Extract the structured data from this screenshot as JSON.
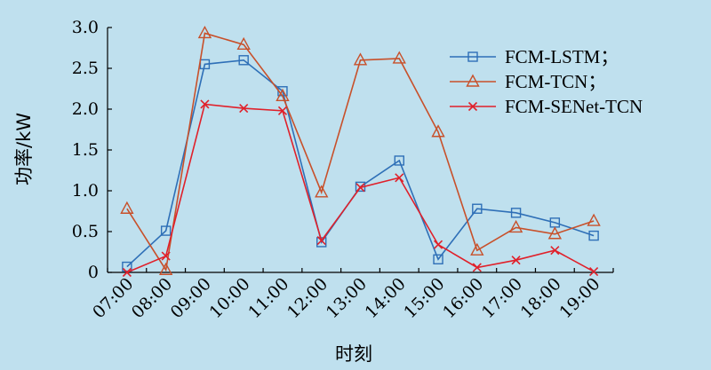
{
  "chart_data": {
    "type": "line",
    "xlabel": "时刻",
    "ylabel": "功率/kW",
    "ylim": [
      0,
      3.0
    ],
    "yticks": [
      "0",
      "0.5",
      "1.0",
      "1.5",
      "2.0",
      "2.5",
      "3.0"
    ],
    "categories": [
      "07:00",
      "08:00",
      "09:00",
      "10:00",
      "11:00",
      "12:00",
      "13:00",
      "14:00",
      "15:00",
      "16:00",
      "17:00",
      "18:00",
      "19:00"
    ],
    "grid": false,
    "legend_position": "top-right",
    "series": [
      {
        "name": "FCM-LSTM；",
        "marker": "square",
        "color": "#2e6fb7",
        "values": [
          0.07,
          0.51,
          2.55,
          2.6,
          2.22,
          0.37,
          1.05,
          1.37,
          0.16,
          0.78,
          0.73,
          0.61,
          0.45
        ]
      },
      {
        "name": "FCM-TCN；",
        "marker": "triangle",
        "color": "#c8502a",
        "values": [
          0.78,
          0.03,
          2.93,
          2.79,
          2.16,
          0.98,
          2.6,
          2.62,
          1.72,
          0.27,
          0.55,
          0.47,
          0.63
        ]
      },
      {
        "name": "FCM-SENet-TCN",
        "marker": "cross",
        "color": "#e0202a",
        "values": [
          0.0,
          0.2,
          2.06,
          2.01,
          1.98,
          0.39,
          1.04,
          1.16,
          0.34,
          0.06,
          0.15,
          0.27,
          0.01
        ]
      }
    ]
  }
}
